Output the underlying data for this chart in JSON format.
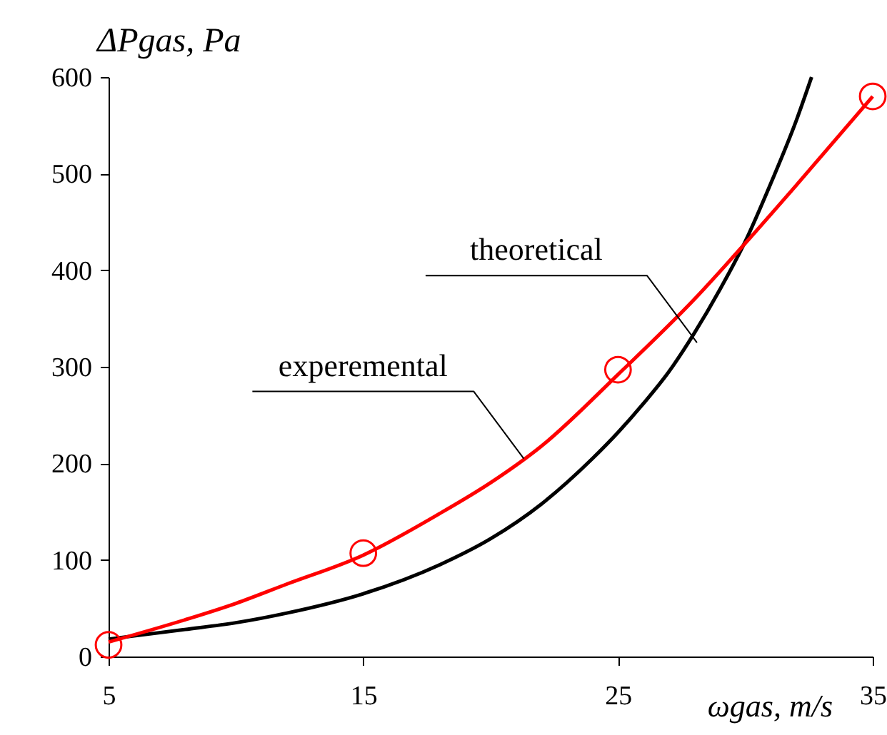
{
  "chart_data": {
    "type": "line",
    "xlabel": "ωgas, m/s",
    "ylabel": "ΔPgas, Pa",
    "xlim": [
      5,
      35
    ],
    "xticks": [
      5,
      15,
      25,
      35
    ],
    "ylim": [
      0,
      600
    ],
    "yticks": [
      0,
      100,
      200,
      300,
      400,
      500,
      600
    ],
    "grid": false,
    "legend": false,
    "line_style": "solid",
    "series": [
      {
        "color": "#000000",
        "x": [
          5,
          8,
          10,
          12,
          15,
          18,
          20,
          22,
          24,
          25,
          26,
          27,
          28,
          29,
          30,
          31,
          32,
          32.6
        ],
        "values": [
          18,
          28,
          35,
          45,
          65,
          95,
          122,
          158,
          205,
          232,
          262,
          295,
          335,
          380,
          430,
          490,
          555,
          600
        ]
      },
      {
        "color": "#ff0000",
        "x": [
          5,
          8,
          10,
          12,
          15,
          18,
          20,
          22,
          25,
          28,
          30,
          32,
          35
        ],
        "values": [
          15,
          38,
          55,
          75,
          105,
          148,
          180,
          218,
          292,
          370,
          428,
          488,
          580
        ]
      },
      {
        "type": "scatter",
        "color": "#ff0000",
        "marker": "circle",
        "x": [
          5,
          15,
          25,
          35
        ],
        "values": [
          12,
          107,
          297,
          580
        ]
      }
    ],
    "annotations": [
      {
        "text": "experemental",
        "x": 21.3,
        "y": 205
      },
      {
        "text": "theoretical",
        "x": 28.1,
        "y": 325
      }
    ]
  }
}
